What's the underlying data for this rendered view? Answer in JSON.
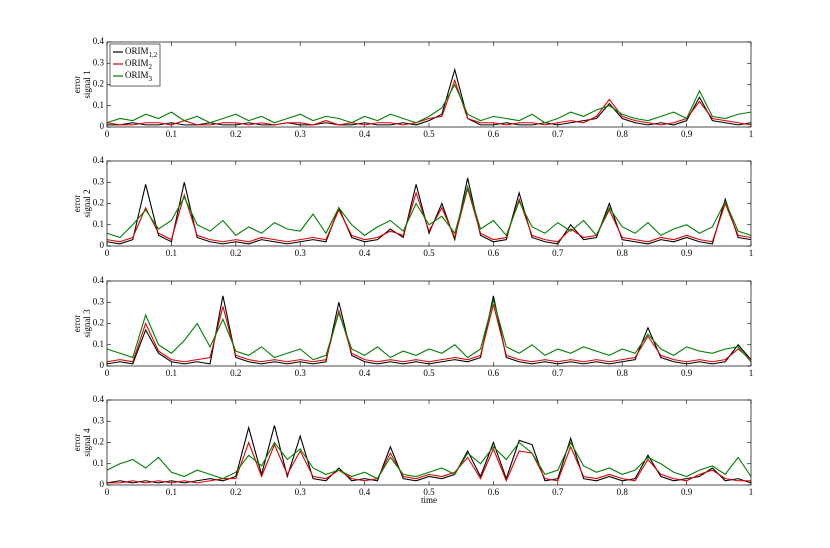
{
  "chart_data": [
    {
      "type": "line",
      "ylabel": [
        "error",
        "signal 1"
      ],
      "legend": "upper left",
      "xlim": [
        0,
        1
      ],
      "xticks": [
        0,
        0.1,
        0.2,
        0.3,
        0.4,
        0.5,
        0.6,
        0.7,
        0.8,
        0.9,
        1
      ],
      "ylim": [
        0,
        0.4
      ],
      "yticks": [
        0,
        0.1,
        0.2,
        0.3,
        0.4
      ],
      "x": [
        0,
        0.02,
        0.04,
        0.06,
        0.08,
        0.1,
        0.12,
        0.14,
        0.16,
        0.18,
        0.2,
        0.22,
        0.24,
        0.26,
        0.28,
        0.3,
        0.32,
        0.34,
        0.36,
        0.38,
        0.4,
        0.42,
        0.44,
        0.46,
        0.48,
        0.5,
        0.52,
        0.54,
        0.56,
        0.58,
        0.6,
        0.62,
        0.64,
        0.66,
        0.68,
        0.7,
        0.72,
        0.74,
        0.76,
        0.78,
        0.8,
        0.82,
        0.84,
        0.86,
        0.88,
        0.9,
        0.92,
        0.94,
        0.96,
        0.98,
        1
      ],
      "series": [
        {
          "name": "ORIM",
          "subscript": "1,2",
          "color": "#000000",
          "values": [
            0.01,
            0.01,
            0.02,
            0.01,
            0.01,
            0.02,
            0.01,
            0.01,
            0.02,
            0.01,
            0.01,
            0.02,
            0.01,
            0.01,
            0.02,
            0.01,
            0.01,
            0.02,
            0.01,
            0.01,
            0.02,
            0.01,
            0.01,
            0.02,
            0.01,
            0.03,
            0.06,
            0.27,
            0.04,
            0.01,
            0.01,
            0.02,
            0.01,
            0.01,
            0.02,
            0.01,
            0.02,
            0.03,
            0.04,
            0.11,
            0.04,
            0.02,
            0.01,
            0.02,
            0.01,
            0.03,
            0.14,
            0.03,
            0.02,
            0.01,
            0.02
          ]
        },
        {
          "name": "ORIM",
          "subscript": "2",
          "color": "#e00000",
          "values": [
            0.02,
            0.01,
            0.01,
            0.02,
            0.02,
            0.01,
            0.03,
            0.01,
            0.01,
            0.02,
            0.02,
            0.01,
            0.02,
            0.01,
            0.02,
            0.02,
            0.01,
            0.03,
            0.01,
            0.02,
            0.01,
            0.02,
            0.02,
            0.01,
            0.02,
            0.04,
            0.05,
            0.22,
            0.04,
            0.02,
            0.02,
            0.01,
            0.02,
            0.02,
            0.01,
            0.02,
            0.03,
            0.02,
            0.05,
            0.13,
            0.05,
            0.03,
            0.02,
            0.01,
            0.02,
            0.04,
            0.12,
            0.04,
            0.03,
            0.02,
            0.01
          ]
        },
        {
          "name": "ORIM",
          "subscript": "3",
          "color": "#008000",
          "values": [
            0.02,
            0.04,
            0.03,
            0.06,
            0.04,
            0.07,
            0.03,
            0.05,
            0.02,
            0.04,
            0.06,
            0.03,
            0.05,
            0.02,
            0.04,
            0.06,
            0.03,
            0.05,
            0.04,
            0.02,
            0.05,
            0.03,
            0.06,
            0.04,
            0.02,
            0.05,
            0.09,
            0.2,
            0.06,
            0.03,
            0.05,
            0.04,
            0.03,
            0.06,
            0.02,
            0.04,
            0.07,
            0.05,
            0.08,
            0.1,
            0.06,
            0.04,
            0.03,
            0.05,
            0.07,
            0.04,
            0.17,
            0.05,
            0.04,
            0.06,
            0.07
          ]
        }
      ]
    },
    {
      "type": "line",
      "ylabel": [
        "error",
        "signal 2"
      ],
      "xlim": [
        0,
        1
      ],
      "xticks": [
        0,
        0.1,
        0.2,
        0.3,
        0.4,
        0.5,
        0.6,
        0.7,
        0.8,
        0.9,
        1
      ],
      "ylim": [
        0,
        0.4
      ],
      "yticks": [
        0,
        0.1,
        0.2,
        0.3,
        0.4
      ],
      "x": [
        0,
        0.02,
        0.04,
        0.06,
        0.08,
        0.1,
        0.12,
        0.14,
        0.16,
        0.18,
        0.2,
        0.22,
        0.24,
        0.26,
        0.28,
        0.3,
        0.32,
        0.34,
        0.36,
        0.38,
        0.4,
        0.42,
        0.44,
        0.46,
        0.48,
        0.5,
        0.52,
        0.54,
        0.56,
        0.58,
        0.6,
        0.62,
        0.64,
        0.66,
        0.68,
        0.7,
        0.72,
        0.74,
        0.76,
        0.78,
        0.8,
        0.82,
        0.84,
        0.86,
        0.88,
        0.9,
        0.92,
        0.94,
        0.96,
        0.98,
        1
      ],
      "series": [
        {
          "color": "#000000",
          "values": [
            0.02,
            0.01,
            0.03,
            0.29,
            0.05,
            0.02,
            0.3,
            0.04,
            0.02,
            0.01,
            0.02,
            0.01,
            0.03,
            0.02,
            0.01,
            0.02,
            0.03,
            0.02,
            0.18,
            0.04,
            0.02,
            0.03,
            0.08,
            0.04,
            0.29,
            0.06,
            0.2,
            0.03,
            0.32,
            0.05,
            0.02,
            0.03,
            0.25,
            0.04,
            0.02,
            0.01,
            0.1,
            0.03,
            0.04,
            0.2,
            0.03,
            0.02,
            0.01,
            0.03,
            0.02,
            0.04,
            0.02,
            0.01,
            0.22,
            0.04,
            0.03
          ]
        },
        {
          "color": "#e00000",
          "values": [
            0.03,
            0.02,
            0.04,
            0.18,
            0.06,
            0.03,
            0.24,
            0.05,
            0.03,
            0.02,
            0.03,
            0.02,
            0.04,
            0.03,
            0.02,
            0.03,
            0.04,
            0.03,
            0.17,
            0.05,
            0.03,
            0.04,
            0.07,
            0.05,
            0.25,
            0.07,
            0.18,
            0.04,
            0.27,
            0.06,
            0.03,
            0.04,
            0.22,
            0.05,
            0.03,
            0.02,
            0.08,
            0.04,
            0.05,
            0.17,
            0.04,
            0.03,
            0.02,
            0.04,
            0.03,
            0.05,
            0.03,
            0.02,
            0.2,
            0.05,
            0.04
          ]
        },
        {
          "color": "#008000",
          "values": [
            0.06,
            0.04,
            0.1,
            0.17,
            0.08,
            0.12,
            0.23,
            0.1,
            0.07,
            0.12,
            0.05,
            0.09,
            0.06,
            0.11,
            0.08,
            0.07,
            0.15,
            0.06,
            0.18,
            0.1,
            0.05,
            0.09,
            0.12,
            0.07,
            0.2,
            0.1,
            0.14,
            0.06,
            0.28,
            0.08,
            0.12,
            0.05,
            0.21,
            0.09,
            0.06,
            0.11,
            0.07,
            0.12,
            0.05,
            0.18,
            0.09,
            0.06,
            0.11,
            0.05,
            0.08,
            0.1,
            0.06,
            0.09,
            0.21,
            0.07,
            0.05
          ]
        }
      ]
    },
    {
      "type": "line",
      "ylabel": [
        "error",
        "signal 3"
      ],
      "xlim": [
        0,
        1
      ],
      "xticks": [
        0,
        0.1,
        0.2,
        0.3,
        0.4,
        0.5,
        0.6,
        0.7,
        0.8,
        0.9,
        1
      ],
      "ylim": [
        0,
        0.4
      ],
      "yticks": [
        0,
        0.1,
        0.2,
        0.3,
        0.4
      ],
      "x": [
        0,
        0.02,
        0.04,
        0.06,
        0.08,
        0.1,
        0.12,
        0.14,
        0.16,
        0.18,
        0.2,
        0.22,
        0.24,
        0.26,
        0.28,
        0.3,
        0.32,
        0.34,
        0.36,
        0.38,
        0.4,
        0.42,
        0.44,
        0.46,
        0.48,
        0.5,
        0.52,
        0.54,
        0.56,
        0.58,
        0.6,
        0.62,
        0.64,
        0.66,
        0.68,
        0.7,
        0.72,
        0.74,
        0.76,
        0.78,
        0.8,
        0.82,
        0.84,
        0.86,
        0.88,
        0.9,
        0.92,
        0.94,
        0.96,
        0.98,
        1
      ],
      "series": [
        {
          "color": "#000000",
          "values": [
            0.01,
            0.02,
            0.01,
            0.17,
            0.06,
            0.02,
            0.01,
            0.02,
            0.01,
            0.33,
            0.04,
            0.02,
            0.01,
            0.02,
            0.01,
            0.02,
            0.01,
            0.02,
            0.3,
            0.05,
            0.02,
            0.01,
            0.02,
            0.01,
            0.02,
            0.01,
            0.02,
            0.03,
            0.02,
            0.04,
            0.33,
            0.04,
            0.02,
            0.01,
            0.02,
            0.01,
            0.02,
            0.01,
            0.02,
            0.01,
            0.02,
            0.03,
            0.18,
            0.04,
            0.02,
            0.01,
            0.02,
            0.01,
            0.02,
            0.1,
            0.03
          ]
        },
        {
          "color": "#e00000",
          "values": [
            0.02,
            0.03,
            0.02,
            0.2,
            0.07,
            0.03,
            0.02,
            0.03,
            0.04,
            0.28,
            0.05,
            0.03,
            0.02,
            0.03,
            0.02,
            0.03,
            0.02,
            0.03,
            0.26,
            0.06,
            0.03,
            0.02,
            0.03,
            0.02,
            0.03,
            0.02,
            0.03,
            0.04,
            0.03,
            0.05,
            0.29,
            0.05,
            0.03,
            0.02,
            0.03,
            0.02,
            0.03,
            0.02,
            0.03,
            0.02,
            0.03,
            0.04,
            0.14,
            0.05,
            0.03,
            0.02,
            0.03,
            0.02,
            0.03,
            0.08,
            0.03
          ]
        },
        {
          "color": "#008000",
          "values": [
            0.08,
            0.06,
            0.04,
            0.24,
            0.1,
            0.06,
            0.12,
            0.2,
            0.09,
            0.22,
            0.07,
            0.05,
            0.09,
            0.04,
            0.06,
            0.08,
            0.03,
            0.05,
            0.25,
            0.08,
            0.05,
            0.09,
            0.04,
            0.07,
            0.05,
            0.08,
            0.06,
            0.1,
            0.04,
            0.08,
            0.31,
            0.09,
            0.06,
            0.1,
            0.05,
            0.08,
            0.06,
            0.09,
            0.07,
            0.05,
            0.08,
            0.06,
            0.15,
            0.08,
            0.05,
            0.09,
            0.07,
            0.06,
            0.08,
            0.09,
            0.02
          ]
        }
      ]
    },
    {
      "type": "line",
      "ylabel": [
        "error",
        "signal 4"
      ],
      "xlabel": "time",
      "xlim": [
        0,
        1
      ],
      "xticks": [
        0,
        0.1,
        0.2,
        0.3,
        0.4,
        0.5,
        0.6,
        0.7,
        0.8,
        0.9,
        1
      ],
      "ylim": [
        0,
        0.4
      ],
      "yticks": [
        0,
        0.1,
        0.2,
        0.3,
        0.4
      ],
      "x": [
        0,
        0.02,
        0.04,
        0.06,
        0.08,
        0.1,
        0.12,
        0.14,
        0.16,
        0.18,
        0.2,
        0.22,
        0.24,
        0.26,
        0.28,
        0.3,
        0.32,
        0.34,
        0.36,
        0.38,
        0.4,
        0.42,
        0.44,
        0.46,
        0.48,
        0.5,
        0.52,
        0.54,
        0.56,
        0.58,
        0.6,
        0.62,
        0.64,
        0.66,
        0.68,
        0.7,
        0.72,
        0.74,
        0.76,
        0.78,
        0.8,
        0.82,
        0.84,
        0.86,
        0.88,
        0.9,
        0.92,
        0.94,
        0.96,
        0.98,
        1
      ],
      "series": [
        {
          "color": "#000000",
          "values": [
            0.01,
            0.02,
            0.01,
            0.02,
            0.01,
            0.02,
            0.01,
            0.02,
            0.03,
            0.02,
            0.04,
            0.27,
            0.05,
            0.28,
            0.04,
            0.23,
            0.03,
            0.02,
            0.08,
            0.02,
            0.03,
            0.02,
            0.18,
            0.03,
            0.02,
            0.04,
            0.03,
            0.05,
            0.16,
            0.04,
            0.2,
            0.03,
            0.21,
            0.19,
            0.02,
            0.03,
            0.22,
            0.03,
            0.02,
            0.04,
            0.02,
            0.03,
            0.14,
            0.04,
            0.02,
            0.03,
            0.04,
            0.08,
            0.02,
            0.03,
            0.01
          ]
        },
        {
          "color": "#e00000",
          "values": [
            0.01,
            0.01,
            0.02,
            0.01,
            0.02,
            0.01,
            0.02,
            0.01,
            0.02,
            0.03,
            0.03,
            0.2,
            0.04,
            0.19,
            0.05,
            0.16,
            0.04,
            0.03,
            0.07,
            0.03,
            0.02,
            0.03,
            0.15,
            0.04,
            0.03,
            0.05,
            0.04,
            0.06,
            0.13,
            0.03,
            0.17,
            0.02,
            0.16,
            0.15,
            0.03,
            0.02,
            0.18,
            0.04,
            0.03,
            0.05,
            0.03,
            0.02,
            0.12,
            0.05,
            0.03,
            0.02,
            0.05,
            0.07,
            0.03,
            0.02,
            0.02
          ]
        },
        {
          "color": "#008000",
          "values": [
            0.07,
            0.1,
            0.12,
            0.08,
            0.13,
            0.06,
            0.04,
            0.07,
            0.05,
            0.03,
            0.06,
            0.14,
            0.09,
            0.2,
            0.12,
            0.17,
            0.08,
            0.05,
            0.07,
            0.04,
            0.06,
            0.03,
            0.13,
            0.05,
            0.04,
            0.06,
            0.08,
            0.05,
            0.15,
            0.1,
            0.18,
            0.12,
            0.2,
            0.15,
            0.05,
            0.07,
            0.2,
            0.09,
            0.06,
            0.08,
            0.05,
            0.07,
            0.13,
            0.1,
            0.06,
            0.04,
            0.07,
            0.09,
            0.05,
            0.13,
            0.04
          ]
        }
      ]
    }
  ]
}
